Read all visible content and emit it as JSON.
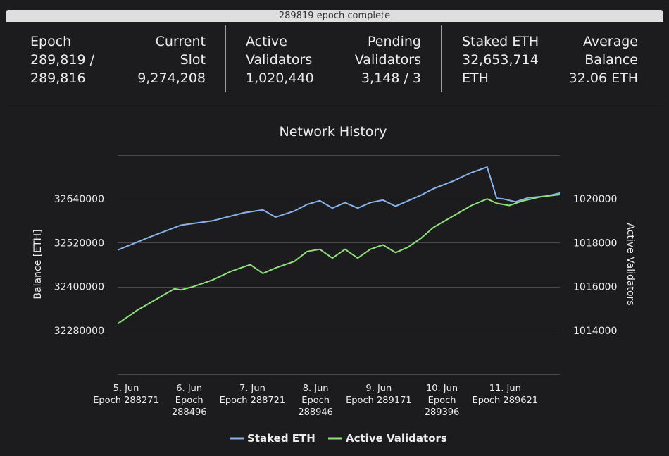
{
  "progress": {
    "label": "289819 epoch complete",
    "fraction": 1.0
  },
  "stats": {
    "epoch": {
      "label": "Epoch",
      "value1": "289,819 /",
      "value2": "289,816"
    },
    "current_slot": {
      "label1": "Current",
      "label2": "Slot",
      "value": "9,274,208"
    },
    "active_validators": {
      "label1": "Active",
      "label2": "Validators",
      "value": "1,020,440"
    },
    "pending_validators": {
      "label1": "Pending",
      "label2": "Validators",
      "value": "3,148 / 3"
    },
    "staked_eth": {
      "label": "Staked ETH",
      "value1": "32,653,714",
      "value2": "ETH"
    },
    "average_balance": {
      "label1": "Average",
      "label2": "Balance",
      "value": "32.06 ETH"
    }
  },
  "colors": {
    "staked": "#86b3ea",
    "validators": "#8ee07a",
    "grid": "#4a4a4c",
    "text": "#ececec"
  },
  "chart_data": {
    "type": "line",
    "title": "Network History",
    "ylabel": "Balance [ETH]",
    "y2label": "Active Validators",
    "xlim": [
      0,
      7
    ],
    "ylim": [
      32160000,
      32760000
    ],
    "y2lim": [
      1012000,
      1022000
    ],
    "yticks": [
      32280000,
      32400000,
      32520000,
      32640000
    ],
    "y2ticks": [
      1014000,
      1016000,
      1018000,
      1020000
    ],
    "grid": true,
    "legend_position": "bottom-center",
    "xticks": [
      {
        "x": 0,
        "lines": [
          "5. Jun",
          "Epoch 288271"
        ]
      },
      {
        "x": 1,
        "lines": [
          "6. Jun",
          "Epoch",
          "288496"
        ]
      },
      {
        "x": 2,
        "lines": [
          "7. Jun",
          "Epoch 288721"
        ]
      },
      {
        "x": 3,
        "lines": [
          "8. Jun",
          "Epoch",
          "288946"
        ]
      },
      {
        "x": 4,
        "lines": [
          "9. Jun",
          "Epoch 289171"
        ]
      },
      {
        "x": 5,
        "lines": [
          "10. Jun",
          "Epoch",
          "289396"
        ]
      },
      {
        "x": 6,
        "lines": [
          "11. Jun",
          "Epoch 289621"
        ]
      }
    ],
    "series": [
      {
        "name": "Staked ETH",
        "axis": "left",
        "points": [
          [
            0,
            32500000
          ],
          [
            0.5,
            32535000
          ],
          [
            1,
            32568000
          ],
          [
            1.5,
            32580000
          ],
          [
            2,
            32602000
          ],
          [
            2.3,
            32610000
          ],
          [
            2.5,
            32590000
          ],
          [
            2.8,
            32607000
          ],
          [
            3,
            32625000
          ],
          [
            3.2,
            32635000
          ],
          [
            3.4,
            32615000
          ],
          [
            3.6,
            32630000
          ],
          [
            3.8,
            32615000
          ],
          [
            4,
            32630000
          ],
          [
            4.2,
            32637000
          ],
          [
            4.4,
            32620000
          ],
          [
            4.6,
            32635000
          ],
          [
            4.8,
            32650000
          ],
          [
            5,
            32668000
          ],
          [
            5.3,
            32688000
          ],
          [
            5.6,
            32712000
          ],
          [
            5.85,
            32727000
          ],
          [
            6,
            32642000
          ],
          [
            6.1,
            32640000
          ],
          [
            6.3,
            32632000
          ],
          [
            6.5,
            32643000
          ],
          [
            6.8,
            32648000
          ],
          [
            7,
            32656000
          ]
        ]
      },
      {
        "name": "Active Validators",
        "axis": "right",
        "points": [
          [
            0,
            1014300
          ],
          [
            0.3,
            1014900
          ],
          [
            0.6,
            1015400
          ],
          [
            0.9,
            1015900
          ],
          [
            1,
            1015850
          ],
          [
            1.2,
            1016000
          ],
          [
            1.5,
            1016300
          ],
          [
            1.8,
            1016700
          ],
          [
            2,
            1016900
          ],
          [
            2.1,
            1017000
          ],
          [
            2.3,
            1016600
          ],
          [
            2.5,
            1016850
          ],
          [
            2.8,
            1017150
          ],
          [
            3,
            1017600
          ],
          [
            3.2,
            1017700
          ],
          [
            3.4,
            1017300
          ],
          [
            3.6,
            1017700
          ],
          [
            3.8,
            1017300
          ],
          [
            4,
            1017700
          ],
          [
            4.2,
            1017900
          ],
          [
            4.4,
            1017550
          ],
          [
            4.6,
            1017800
          ],
          [
            4.8,
            1018200
          ],
          [
            5,
            1018700
          ],
          [
            5.3,
            1019200
          ],
          [
            5.6,
            1019700
          ],
          [
            5.85,
            1020000
          ],
          [
            6,
            1019800
          ],
          [
            6.2,
            1019700
          ],
          [
            6.4,
            1019900
          ],
          [
            6.7,
            1020100
          ],
          [
            7,
            1020200
          ]
        ]
      }
    ]
  }
}
